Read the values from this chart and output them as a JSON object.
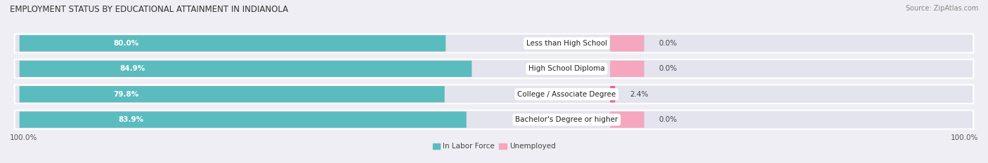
{
  "title": "EMPLOYMENT STATUS BY EDUCATIONAL ATTAINMENT IN INDIANOLA",
  "source": "Source: ZipAtlas.com",
  "categories": [
    "Less than High School",
    "High School Diploma",
    "College / Associate Degree",
    "Bachelor's Degree or higher"
  ],
  "in_labor_force": [
    80.0,
    84.9,
    79.8,
    83.9
  ],
  "unemployed": [
    0.0,
    0.0,
    2.4,
    0.0
  ],
  "labor_force_color": "#5bbcbf",
  "unemployed_color_light": "#f4a7be",
  "unemployed_color_dark": "#f06090",
  "background_color": "#eeeef4",
  "bar_background_color": "#dcdce6",
  "row_background_color": "#e4e4ee",
  "title_fontsize": 8.5,
  "source_fontsize": 7,
  "label_fontsize": 7.5,
  "axis_label_fontsize": 7.5,
  "legend_fontsize": 7.5,
  "bar_height": 0.62,
  "total_width": 100.0,
  "x_left_label": "100.0%",
  "x_right_label": "100.0%",
  "unemployed_colors": [
    "#f4a7be",
    "#f4a7be",
    "#f06090",
    "#f4a7be"
  ]
}
